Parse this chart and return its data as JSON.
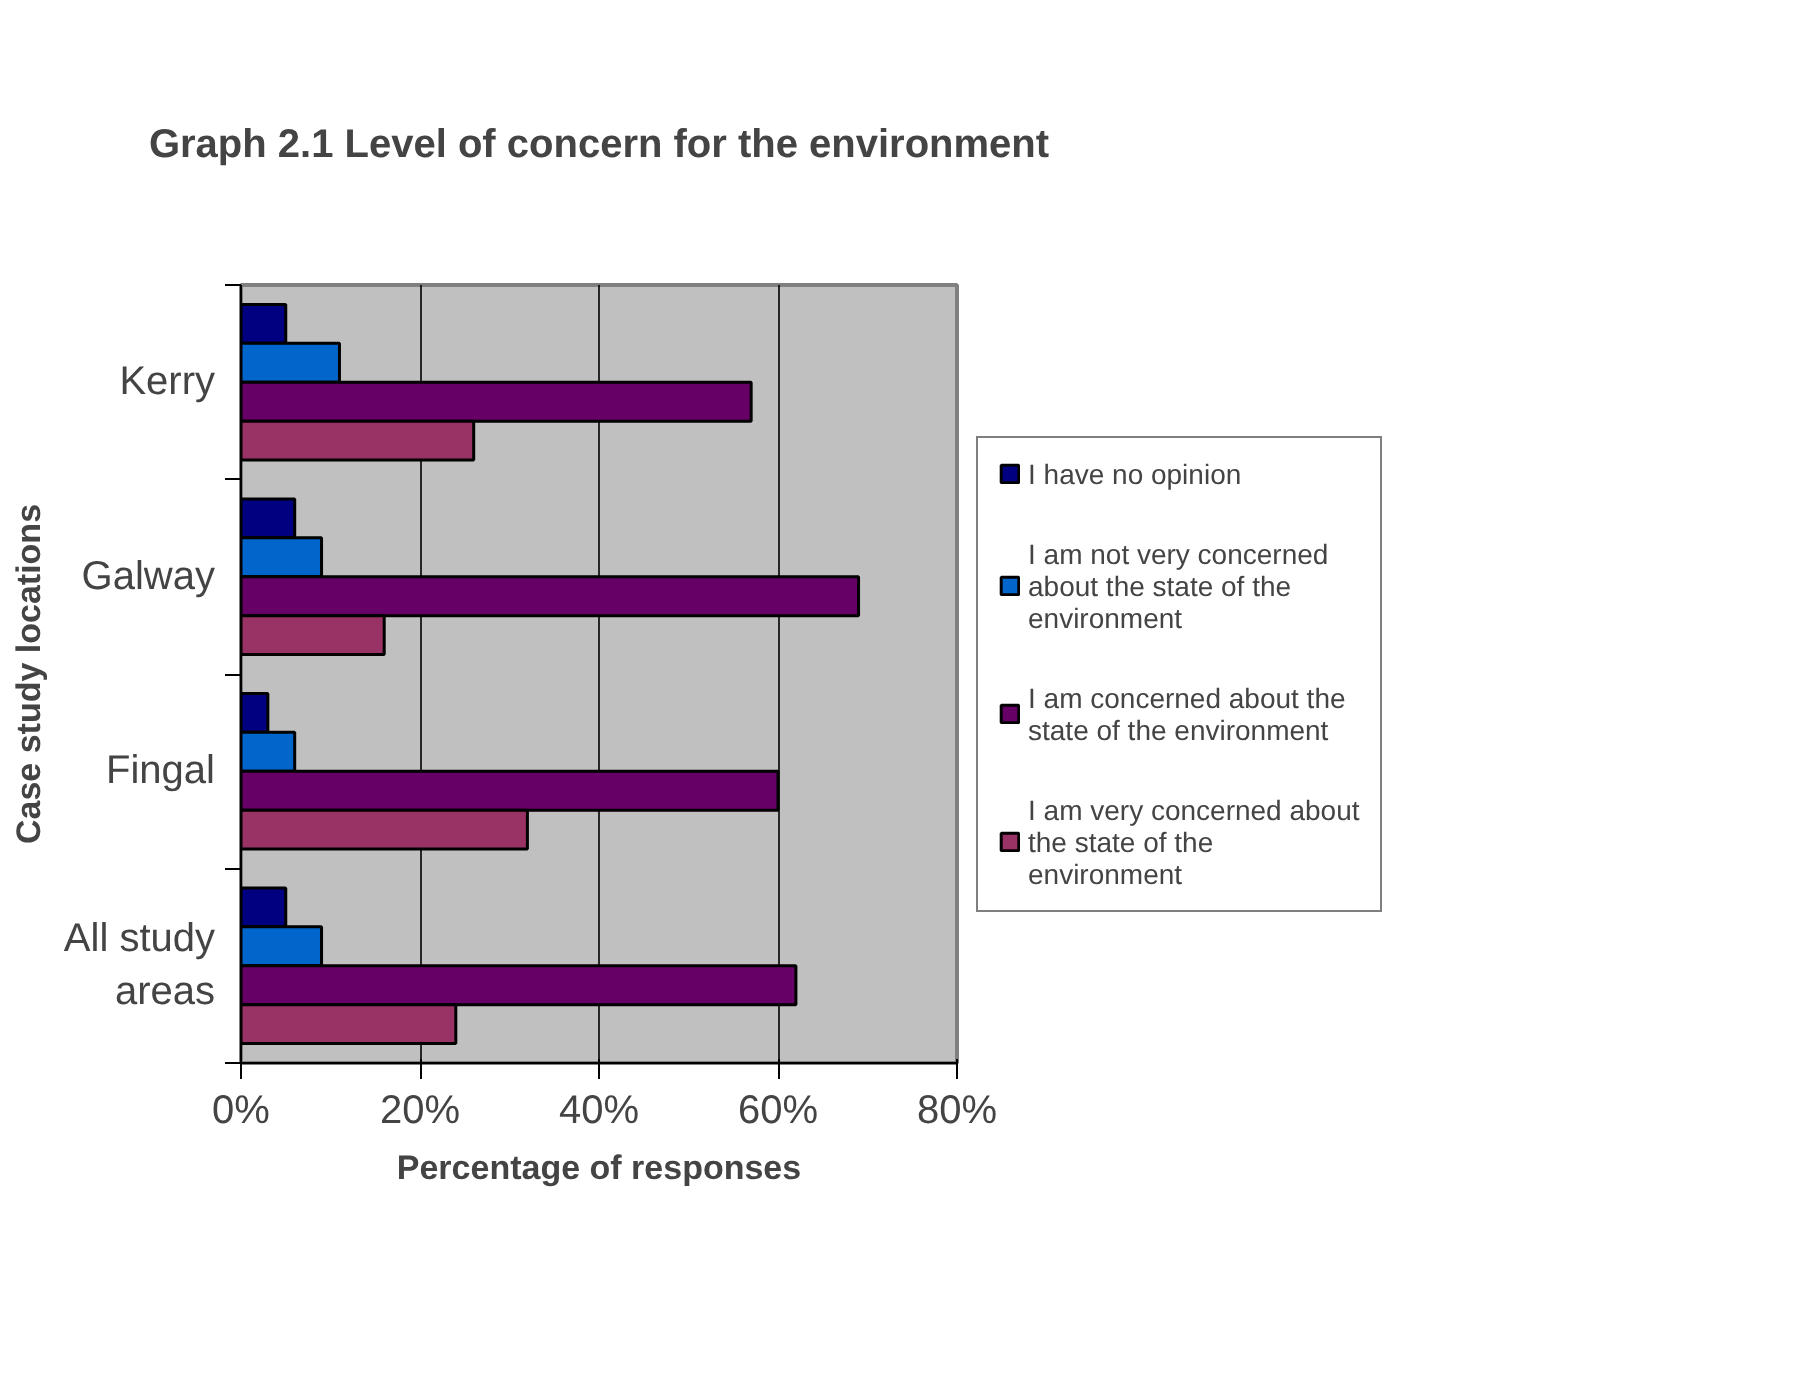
{
  "chart_data": {
    "type": "bar",
    "orientation": "horizontal",
    "title": "Graph 2.1 Level of concern for the environment",
    "xlabel": "Percentage of responses",
    "ylabel": "Case study locations",
    "categories": [
      "Kerry",
      "Galway",
      "Fingal",
      "All study areas"
    ],
    "series": [
      {
        "name": "I have no opinion",
        "color": "#000080",
        "values": [
          5,
          6,
          3,
          5
        ]
      },
      {
        "name": "I am not very concerned about the state of the environment",
        "color": "#0066cc",
        "values": [
          11,
          9,
          6,
          9
        ]
      },
      {
        "name": "I am concerned about the state of the environment",
        "color": "#660066",
        "values": [
          57,
          69,
          60,
          62
        ]
      },
      {
        "name": "I am very concerned about the state of the environment",
        "color": "#993366",
        "values": [
          26,
          16,
          32,
          24
        ]
      }
    ],
    "xlim": [
      0,
      80
    ],
    "xticks": [
      {
        "value": 0,
        "label": "0%"
      },
      {
        "value": 20,
        "label": "20%"
      },
      {
        "value": 40,
        "label": "40%"
      },
      {
        "value": 60,
        "label": "60%"
      },
      {
        "value": 80,
        "label": "80%"
      }
    ],
    "grid": "x",
    "legend": "right"
  }
}
